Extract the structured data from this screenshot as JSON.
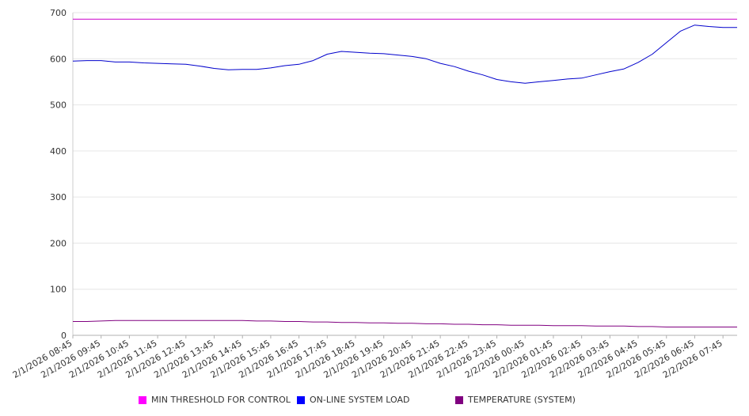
{
  "chart_data": {
    "type": "line",
    "title": "",
    "xlabel": "",
    "ylabel": "",
    "ylim": [
      0,
      700
    ],
    "y_ticks": [
      0,
      100,
      200,
      300,
      400,
      500,
      600,
      700
    ],
    "grid": true,
    "legend_position": "bottom",
    "x_tick_labels": [
      "2/1/2026 08:45",
      "2/1/2026 09:45",
      "2/1/2026 10:45",
      "2/1/2026 11:45",
      "2/1/2026 12:45",
      "2/1/2026 13:45",
      "2/1/2026 14:45",
      "2/1/2026 15:45",
      "2/1/2026 16:45",
      "2/1/2026 17:45",
      "2/1/2026 18:45",
      "2/1/2026 19:45",
      "2/1/2026 20:45",
      "2/1/2026 21:45",
      "2/1/2026 22:45",
      "2/1/2026 23:45",
      "2/2/2026 00:45",
      "2/2/2026 01:45",
      "2/2/2026 02:45",
      "2/2/2026 03:45",
      "2/2/2026 04:45",
      "2/2/2026 05:45",
      "2/2/2026 06:45",
      "2/2/2026 07:45"
    ],
    "x_times": [
      "08:45",
      "09:15",
      "09:45",
      "10:15",
      "10:45",
      "11:15",
      "11:45",
      "12:15",
      "12:45",
      "13:15",
      "13:45",
      "14:15",
      "14:45",
      "15:15",
      "15:45",
      "16:15",
      "16:45",
      "17:15",
      "17:45",
      "18:15",
      "18:45",
      "19:15",
      "19:45",
      "20:15",
      "20:45",
      "21:15",
      "21:45",
      "22:15",
      "22:45",
      "23:15",
      "23:45",
      "00:15",
      "00:45",
      "01:15",
      "01:45",
      "02:15",
      "02:45",
      "03:15",
      "03:45",
      "04:15",
      "04:45",
      "05:15",
      "05:45",
      "06:15",
      "06:45",
      "07:15",
      "07:45",
      "08:15"
    ],
    "series": [
      {
        "name": "MIN THRESHOLD FOR CONTROL",
        "color": "#cc00cc",
        "values": [
          686,
          686,
          686,
          686,
          686,
          686,
          686,
          686,
          686,
          686,
          686,
          686,
          686,
          686,
          686,
          686,
          686,
          686,
          686,
          686,
          686,
          686,
          686,
          686,
          686,
          686,
          686,
          686,
          686,
          686,
          686,
          686,
          686,
          686,
          686,
          686,
          686,
          686,
          686,
          686,
          686,
          686,
          686,
          686,
          686,
          686,
          686,
          686
        ]
      },
      {
        "name": "ON-LINE SYSTEM LOAD",
        "color": "#0000cc",
        "values": [
          595,
          596,
          596,
          593,
          593,
          591,
          590,
          589,
          588,
          584,
          579,
          576,
          577,
          577,
          580,
          585,
          588,
          596,
          610,
          616,
          614,
          612,
          611,
          608,
          605,
          600,
          590,
          583,
          573,
          565,
          555,
          550,
          547,
          550,
          553,
          556,
          558,
          565,
          572,
          578,
          592,
          610,
          635,
          660,
          673,
          670,
          668,
          668
        ]
      },
      {
        "name": "TEMPERATURE (SYSTEM)",
        "color": "#800080",
        "values": [
          30,
          30,
          31,
          32,
          32,
          32,
          32,
          32,
          32,
          32,
          32,
          32,
          32,
          31,
          31,
          30,
          30,
          29,
          29,
          28,
          28,
          27,
          27,
          26,
          26,
          25,
          25,
          24,
          24,
          23,
          23,
          22,
          22,
          22,
          21,
          21,
          21,
          20,
          20,
          20,
          19,
          19,
          18,
          18,
          18,
          18,
          18,
          18
        ]
      }
    ]
  }
}
